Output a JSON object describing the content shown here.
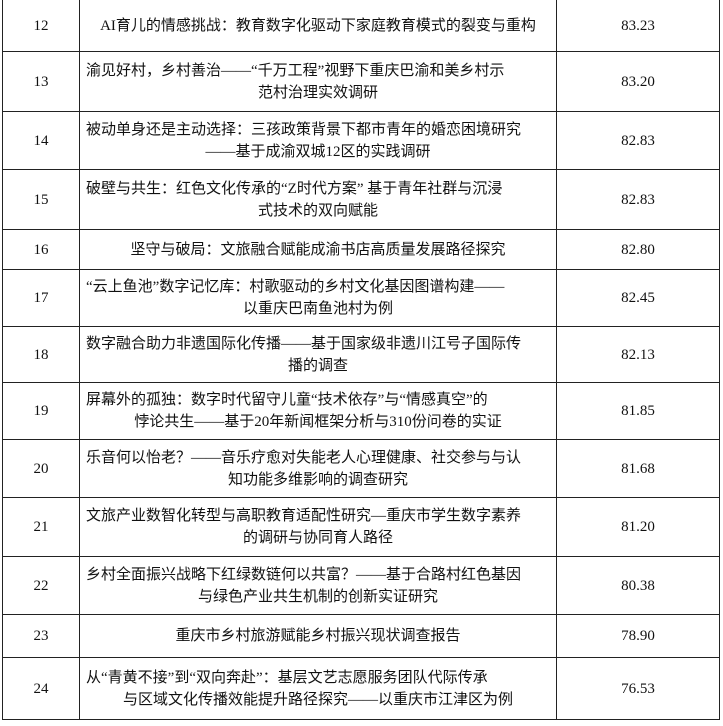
{
  "table": {
    "rows": [
      {
        "no": 12,
        "title": [
          "AI育儿的情感挑战：教育数字化驱动下家庭教育模式的裂变与重构"
        ],
        "score": "83.23"
      },
      {
        "no": 13,
        "title": [
          "渝见好村，乡村善治——“千万工程”视野下重庆巴渝和美乡村示",
          "范村治理实效调研"
        ],
        "score": "83.20"
      },
      {
        "no": 14,
        "title": [
          "被动单身还是主动选择：三孩政策背景下都市青年的婚恋困境研究",
          "——基于成渝双城12区的实践调研"
        ],
        "score": "82.83"
      },
      {
        "no": 15,
        "title": [
          "破壁与共生：红色文化传承的“Z时代方案” 基于青年社群与沉浸",
          "式技术的双向赋能"
        ],
        "score": "82.83"
      },
      {
        "no": 16,
        "title": [
          "坚守与破局：文旅融合赋能成渝书店高质量发展路径探究"
        ],
        "score": "82.80"
      },
      {
        "no": 17,
        "title": [
          "“云上鱼池”数字记忆库：村歌驱动的乡村文化基因图谱构建——",
          "以重庆巴南鱼池村为例"
        ],
        "score": "82.45"
      },
      {
        "no": 18,
        "title": [
          "数字融合助力非遗国际化传播——基于国家级非遗川江号子国际传",
          "播的调查"
        ],
        "score": "82.13"
      },
      {
        "no": 19,
        "title": [
          "屏幕外的孤独：数字时代留守儿童“技术依存”与“情感真空”的",
          "悖论共生——基于20年新闻框架分析与310份问卷的实证"
        ],
        "score": "81.85"
      },
      {
        "no": 20,
        "title": [
          "乐音何以怡老？——音乐疗愈对失能老人心理健康、社交参与与认",
          "知功能多维影响的调查研究"
        ],
        "score": "81.68"
      },
      {
        "no": 21,
        "title": [
          "文旅产业数智化转型与高职教育适配性研究—重庆市学生数字素养",
          "的调研与协同育人路径"
        ],
        "score": "81.20"
      },
      {
        "no": 22,
        "title": [
          "乡村全面振兴战略下红绿数链何以共富？——基于合路村红色基因",
          "与绿色产业共生机制的创新实证研究"
        ],
        "score": "80.38"
      },
      {
        "no": 23,
        "title": [
          "重庆市乡村旅游赋能乡村振兴现状调查报告"
        ],
        "score": "78.90"
      },
      {
        "no": 24,
        "title": [
          "从“青黄不接”到“双向奔赴”：基层文艺志愿服务团队代际传承",
          "与区域文化传播效能提升路径探究——以重庆市江津区为例"
        ],
        "score": "76.53"
      }
    ]
  }
}
